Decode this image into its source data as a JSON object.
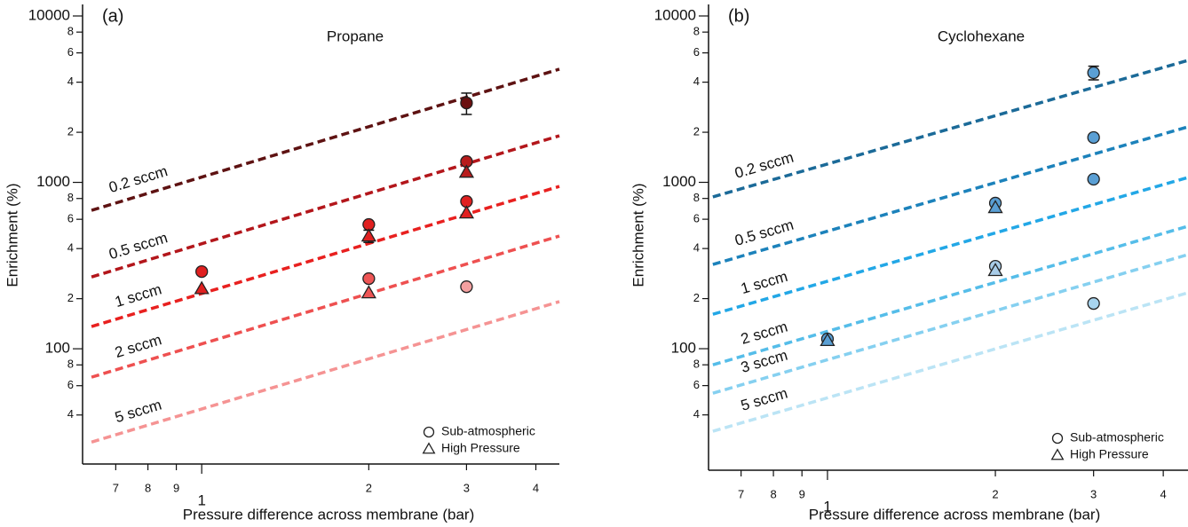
{
  "chart_data": [
    {
      "type": "scatter",
      "panel_label": "(a)",
      "title": "Propane",
      "x_label": "Pressure difference across membrane (bar)",
      "y_label": "Enrichment (%)",
      "xscale": "log",
      "yscale": "log",
      "xlim": [
        0.61,
        4.41
      ],
      "ylim": [
        20.3,
        11730
      ],
      "xticks": [
        {
          "value": 0.7,
          "label": "7"
        },
        {
          "value": 0.8,
          "label": "8"
        },
        {
          "value": 0.9,
          "label": "9"
        },
        1,
        2,
        3,
        4
      ],
      "yticks": [
        {
          "value": 40,
          "label": "4"
        },
        {
          "value": 60,
          "label": "6"
        },
        {
          "value": 80,
          "label": "8"
        },
        100,
        {
          "value": 200,
          "label": "2"
        },
        {
          "value": 400,
          "label": "4"
        },
        {
          "value": 600,
          "label": "6"
        },
        {
          "value": 800,
          "label": "8"
        },
        1000,
        {
          "value": 2000,
          "label": "2"
        },
        {
          "value": 4000,
          "label": "4"
        },
        {
          "value": 6000,
          "label": "6"
        },
        {
          "value": 8000,
          "label": "8"
        },
        10000
      ],
      "legend": "lower right",
      "lines": [
        {
          "name": "0.2 sccm",
          "color": "#5e1212",
          "x": [
            0.633,
            4.41
          ],
          "values": [
            679,
            4790
          ]
        },
        {
          "name": "0.5 sccm",
          "color": "#b3161b",
          "x": [
            0.633,
            4.41
          ],
          "values": [
            270,
            1906
          ]
        },
        {
          "name": "1 sccm",
          "color": "#e8201f",
          "x": [
            0.633,
            4.41
          ],
          "values": [
            136,
            946
          ]
        },
        {
          "name": "2 sccm",
          "color": "#ee5050",
          "x": [
            0.633,
            4.41
          ],
          "values": [
            67.5,
            476
          ]
        },
        {
          "name": "5 sccm",
          "color": "#f59393",
          "x": [
            0.633,
            4.41
          ],
          "values": [
            27.5,
            192
          ]
        }
      ],
      "series": [
        {
          "name": "Sub-atmospheric",
          "marker": "circle",
          "color": "#ffffff",
          "x": [
            1,
            2,
            2,
            3,
            3,
            3,
            3
          ],
          "values": [
            291,
            558,
            264,
            3000,
            1334,
            768,
            236
          ],
          "errors": [
            null,
            null,
            null,
            440,
            null,
            null,
            null
          ],
          "colors": [
            "#e02020",
            "#e02020",
            "#ee5555",
            "#6b1010",
            "#b81c1c",
            "#e02020",
            "#f4a0a0"
          ]
        },
        {
          "name": "High Pressure",
          "marker": "triangle",
          "color": "#ffffff",
          "x": [
            1,
            2,
            2,
            3,
            3
          ],
          "values": [
            230,
            476,
            217,
            1151,
            655
          ],
          "errors": [
            null,
            40,
            null,
            null,
            null
          ],
          "colors": [
            "#e02020",
            "#e02020",
            "#ee5555",
            "#b81c1c",
            "#e02020"
          ]
        }
      ]
    },
    {
      "type": "scatter",
      "panel_label": "(b)",
      "title": "Cyclohexane",
      "x_label": "Pressure difference across membrane (bar)",
      "y_label": "Enrichment (%)",
      "xscale": "log",
      "yscale": "log",
      "xlim": [
        0.612,
        4.43
      ],
      "ylim": [
        18.6,
        11730
      ],
      "xticks": [
        {
          "value": 0.7,
          "label": "7"
        },
        {
          "value": 0.8,
          "label": "8"
        },
        {
          "value": 0.9,
          "label": "9"
        },
        1,
        2,
        3,
        4
      ],
      "yticks": [
        {
          "value": 40,
          "label": "4"
        },
        {
          "value": 60,
          "label": "6"
        },
        {
          "value": 80,
          "label": "8"
        },
        100,
        {
          "value": 200,
          "label": "2"
        },
        {
          "value": 400,
          "label": "4"
        },
        {
          "value": 600,
          "label": "6"
        },
        {
          "value": 800,
          "label": "8"
        },
        1000,
        {
          "value": 2000,
          "label": "2"
        },
        {
          "value": 4000,
          "label": "4"
        },
        {
          "value": 6000,
          "label": "6"
        },
        {
          "value": 8000,
          "label": "8"
        },
        10000
      ],
      "legend": "lower right",
      "lines": [
        {
          "name": "0.2 sccm",
          "color": "#1b6a98",
          "x": [
            0.623,
            4.43
          ],
          "values": [
            817,
            5410
          ]
        },
        {
          "name": "0.5 sccm",
          "color": "#1c82bb",
          "x": [
            0.623,
            4.43
          ],
          "values": [
            321,
            2155
          ]
        },
        {
          "name": "1 sccm",
          "color": "#22a7e6",
          "x": [
            0.623,
            4.43
          ],
          "values": [
            161,
            1070
          ]
        },
        {
          "name": "2 sccm",
          "color": "#55bde9",
          "x": [
            0.623,
            4.43
          ],
          "values": [
            80,
            545
          ]
        },
        {
          "name": "3 sccm",
          "color": "#85d0f0",
          "x": [
            0.623,
            4.43
          ],
          "values": [
            54,
            368
          ]
        },
        {
          "name": "5 sccm",
          "color": "#bbe4f5",
          "x": [
            0.623,
            4.43
          ],
          "values": [
            31.9,
            217
          ]
        }
      ],
      "series": [
        {
          "name": "Sub-atmospheric",
          "marker": "circle",
          "color": "#ffffff",
          "x": [
            1,
            2,
            2,
            3,
            3,
            3,
            3
          ],
          "values": [
            114.5,
            750,
            313,
            4560,
            1860,
            1044,
            187
          ],
          "errors": [
            null,
            null,
            null,
            430,
            null,
            null,
            null
          ],
          "colors": [
            "#5a9fd4",
            "#5a9fd4",
            "#a8cce8",
            "#5a9fd4",
            "#5a9fd4",
            "#5a9fd4",
            "#a8d4ee"
          ]
        },
        {
          "name": "High Pressure",
          "marker": "triangle",
          "color": "#ffffff",
          "x": [
            1,
            2,
            2
          ],
          "values": [
            112,
            705,
            295
          ],
          "errors": [
            null,
            null,
            null
          ],
          "colors": [
            "#5a9fd4",
            "#5a9fd4",
            "#a8cce8"
          ]
        }
      ]
    }
  ]
}
